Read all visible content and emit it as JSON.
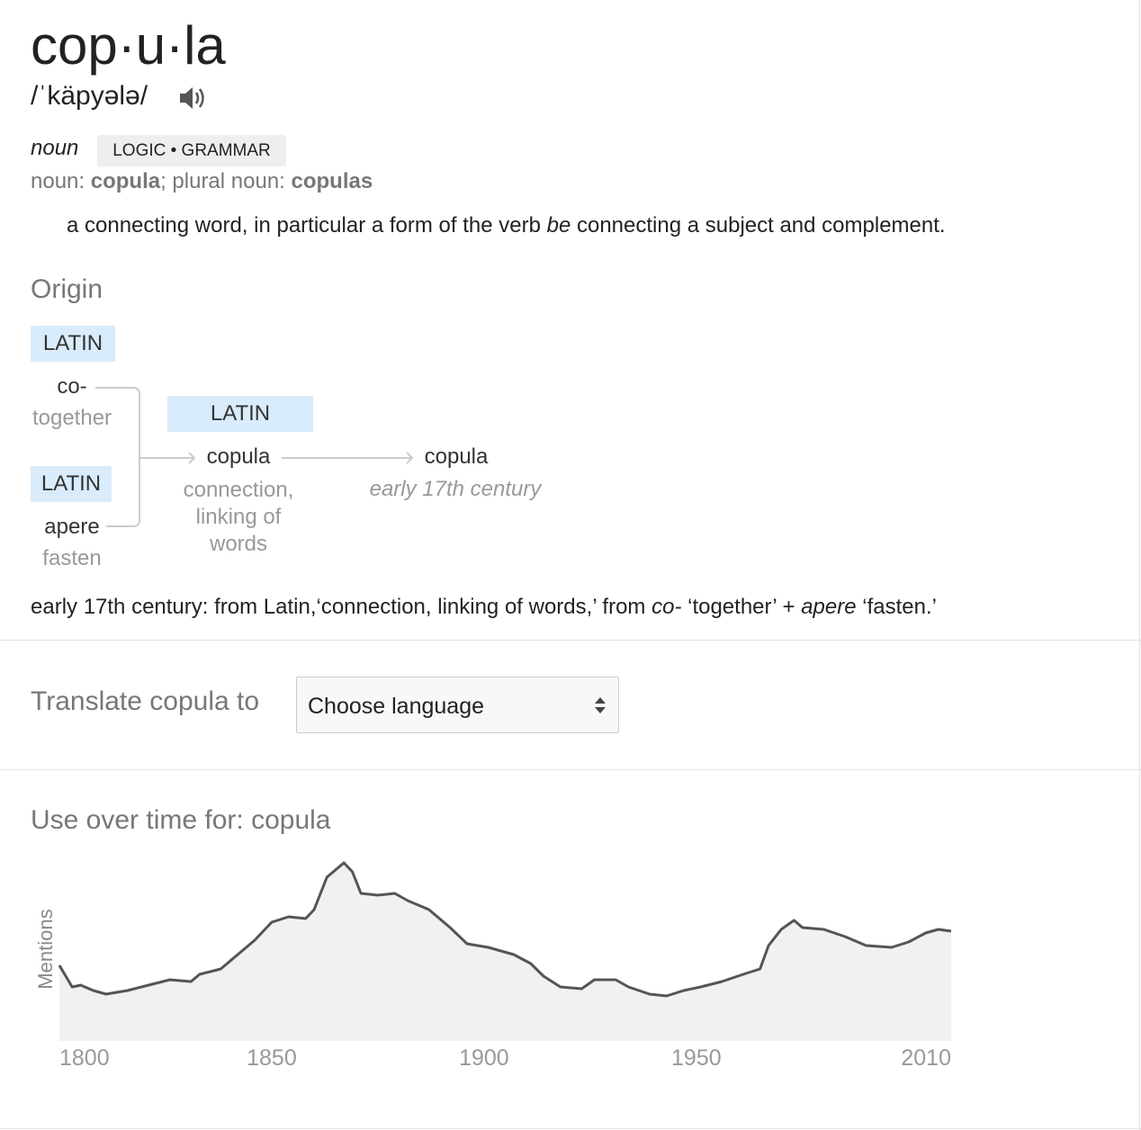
{
  "header": {
    "word": "cop·u·la",
    "pronunciation": "/ˈkäpyələ/"
  },
  "sense": {
    "part_of_speech": "noun",
    "domain": "LOGIC • GRAMMAR",
    "forms": [
      "noun: ",
      "copula",
      "; plural noun: ",
      "copulas"
    ],
    "definition": [
      "a connecting word, in particular a form of the verb ",
      "be",
      " connecting a subject and complement."
    ]
  },
  "origin": {
    "title": "Origin",
    "diagram": {
      "nodes": [
        {
          "language": "LATIN",
          "word": "co-",
          "gloss": "together"
        },
        {
          "language": "LATIN",
          "word": "apere",
          "gloss": "fasten"
        },
        {
          "language": "LATIN",
          "word": "copula",
          "gloss": "connection, linking of words"
        },
        {
          "word": "copula",
          "gloss": "early 17th century"
        }
      ]
    },
    "text": [
      "early 17th century: from Latin,‘connection, linking of words,’ from ",
      "co-",
      " ‘together’ + ",
      "apere",
      " ‘fasten.’"
    ]
  },
  "translate": {
    "label": "Translate copula to",
    "select": "Choose language"
  },
  "chart_data": {
    "type": "area",
    "title": "Use over time for: copula",
    "y_label": "Mentions",
    "x": [
      1800,
      1803,
      1805,
      1808,
      1811,
      1816,
      1821,
      1826,
      1831,
      1833,
      1838,
      1842,
      1846,
      1850,
      1854,
      1858,
      1860,
      1863,
      1867,
      1869,
      1871,
      1875,
      1879,
      1882,
      1887,
      1892,
      1896,
      1901,
      1907,
      1911,
      1914,
      1918,
      1923,
      1926,
      1931,
      1934,
      1939,
      1943,
      1947,
      1951,
      1956,
      1961,
      1965,
      1967,
      1970,
      1973,
      1975,
      1980,
      1985,
      1990,
      1996,
      2000,
      2004,
      2007,
      2010
    ],
    "values": [
      42,
      30,
      31,
      28,
      26,
      28,
      31,
      34,
      33,
      37,
      40,
      48,
      56,
      66,
      69,
      68,
      73,
      91,
      99,
      94,
      82,
      81,
      82,
      78,
      73,
      63,
      54,
      52,
      48,
      43,
      36,
      30,
      29,
      34,
      34,
      30,
      26,
      25,
      28,
      30,
      33,
      37,
      40,
      53,
      62,
      67,
      63,
      62,
      58,
      53,
      52,
      55,
      60,
      62,
      61
    ],
    "xlim": [
      1800,
      2010
    ],
    "xticks": [
      1800,
      1850,
      1900,
      1950,
      2010
    ],
    "ylim": [
      0,
      105
    ],
    "color": "#555555",
    "fill_color": "#f1f1f1"
  }
}
